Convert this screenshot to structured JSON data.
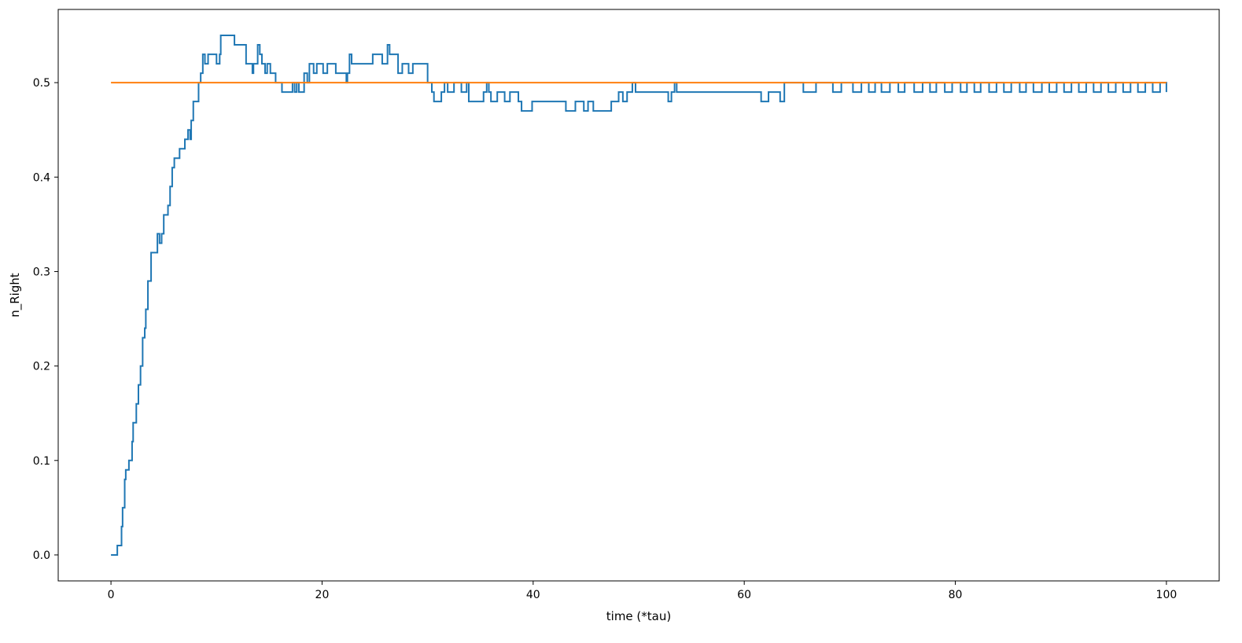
{
  "chart_data": {
    "type": "line",
    "title": "",
    "xlabel": "time (*tau)",
    "ylabel": "n_Right",
    "xlim": [
      -5,
      105
    ],
    "ylim": [
      -0.0275,
      0.5775
    ],
    "xticks": [
      0,
      20,
      40,
      60,
      80,
      100
    ],
    "xtick_labels": [
      "0",
      "20",
      "40",
      "60",
      "80",
      "100"
    ],
    "yticks": [
      0.0,
      0.1,
      0.2,
      0.3,
      0.4,
      0.5
    ],
    "ytick_labels": [
      "0.0",
      "0.1",
      "0.2",
      "0.3",
      "0.4",
      "0.5"
    ],
    "grid": false,
    "series": [
      {
        "color": "#1f77b4",
        "step": true,
        "points": [
          [
            0,
            0.0
          ],
          [
            0.6,
            0.0
          ],
          [
            0.6,
            0.01
          ],
          [
            1.0,
            0.01
          ],
          [
            1.0,
            0.03
          ],
          [
            1.1,
            0.05
          ],
          [
            1.2,
            0.05
          ],
          [
            1.3,
            0.08
          ],
          [
            1.4,
            0.09
          ],
          [
            1.6,
            0.09
          ],
          [
            1.7,
            0.1
          ],
          [
            2.0,
            0.1
          ],
          [
            2.0,
            0.12
          ],
          [
            2.1,
            0.14
          ],
          [
            2.3,
            0.14
          ],
          [
            2.4,
            0.16
          ],
          [
            2.6,
            0.18
          ],
          [
            2.8,
            0.2
          ],
          [
            3.0,
            0.23
          ],
          [
            3.2,
            0.24
          ],
          [
            3.3,
            0.26
          ],
          [
            3.5,
            0.29
          ],
          [
            3.6,
            0.29
          ],
          [
            3.8,
            0.32
          ],
          [
            4.3,
            0.32
          ],
          [
            4.4,
            0.34
          ],
          [
            4.6,
            0.33
          ],
          [
            4.8,
            0.34
          ],
          [
            5.0,
            0.36
          ],
          [
            5.4,
            0.37
          ],
          [
            5.6,
            0.39
          ],
          [
            5.8,
            0.41
          ],
          [
            6.0,
            0.42
          ],
          [
            6.4,
            0.42
          ],
          [
            6.5,
            0.43
          ],
          [
            6.9,
            0.43
          ],
          [
            7.0,
            0.44
          ],
          [
            7.3,
            0.45
          ],
          [
            7.5,
            0.44
          ],
          [
            7.6,
            0.46
          ],
          [
            7.8,
            0.48
          ],
          [
            8.2,
            0.48
          ],
          [
            8.3,
            0.5
          ],
          [
            8.5,
            0.51
          ],
          [
            8.7,
            0.53
          ],
          [
            8.9,
            0.52
          ],
          [
            9.2,
            0.53
          ],
          [
            9.8,
            0.53
          ],
          [
            10.0,
            0.52
          ],
          [
            10.3,
            0.53
          ],
          [
            10.4,
            0.55
          ],
          [
            11.6,
            0.55
          ],
          [
            11.7,
            0.54
          ],
          [
            12.6,
            0.54
          ],
          [
            12.8,
            0.52
          ],
          [
            13.4,
            0.51
          ],
          [
            13.5,
            0.52
          ],
          [
            13.9,
            0.54
          ],
          [
            14.1,
            0.53
          ],
          [
            14.3,
            0.52
          ],
          [
            14.6,
            0.51
          ],
          [
            14.8,
            0.52
          ],
          [
            15.1,
            0.51
          ],
          [
            15.6,
            0.5
          ],
          [
            16.1,
            0.5
          ],
          [
            16.2,
            0.49
          ],
          [
            17.0,
            0.49
          ],
          [
            17.2,
            0.5
          ],
          [
            17.4,
            0.49
          ],
          [
            17.6,
            0.5
          ],
          [
            17.8,
            0.49
          ],
          [
            18.3,
            0.51
          ],
          [
            18.6,
            0.5
          ],
          [
            18.8,
            0.52
          ],
          [
            19.2,
            0.51
          ],
          [
            19.5,
            0.52
          ],
          [
            20.1,
            0.51
          ],
          [
            20.5,
            0.52
          ],
          [
            21.3,
            0.51
          ],
          [
            22.3,
            0.5
          ],
          [
            22.4,
            0.51
          ],
          [
            22.6,
            0.53
          ],
          [
            22.8,
            0.52
          ],
          [
            24.6,
            0.52
          ],
          [
            24.8,
            0.53
          ],
          [
            25.5,
            0.53
          ],
          [
            25.7,
            0.52
          ],
          [
            26.2,
            0.54
          ],
          [
            26.4,
            0.53
          ],
          [
            27.2,
            0.51
          ],
          [
            27.6,
            0.52
          ],
          [
            28.2,
            0.51
          ],
          [
            28.6,
            0.52
          ],
          [
            29.5,
            0.52
          ],
          [
            30.0,
            0.5
          ],
          [
            30.4,
            0.49
          ],
          [
            30.6,
            0.48
          ],
          [
            31.3,
            0.49
          ],
          [
            31.6,
            0.5
          ],
          [
            31.9,
            0.49
          ],
          [
            32.5,
            0.5
          ],
          [
            33.2,
            0.49
          ],
          [
            33.7,
            0.5
          ],
          [
            33.9,
            0.48
          ],
          [
            35.3,
            0.49
          ],
          [
            35.6,
            0.5
          ],
          [
            35.8,
            0.49
          ],
          [
            36.0,
            0.48
          ],
          [
            36.6,
            0.49
          ],
          [
            37.3,
            0.48
          ],
          [
            37.8,
            0.49
          ],
          [
            38.6,
            0.48
          ],
          [
            38.9,
            0.47
          ],
          [
            39.9,
            0.48
          ],
          [
            43.0,
            0.48
          ],
          [
            43.1,
            0.47
          ],
          [
            44.0,
            0.48
          ],
          [
            44.8,
            0.47
          ],
          [
            45.2,
            0.48
          ],
          [
            45.7,
            0.47
          ],
          [
            47.4,
            0.48
          ],
          [
            48.1,
            0.49
          ],
          [
            48.5,
            0.48
          ],
          [
            48.9,
            0.49
          ],
          [
            49.4,
            0.5
          ],
          [
            49.7,
            0.49
          ],
          [
            52.8,
            0.48
          ],
          [
            53.1,
            0.49
          ],
          [
            53.4,
            0.5
          ],
          [
            53.6,
            0.49
          ],
          [
            61.5,
            0.49
          ],
          [
            61.6,
            0.48
          ],
          [
            62.3,
            0.49
          ],
          [
            63.2,
            0.49
          ],
          [
            63.4,
            0.48
          ],
          [
            63.8,
            0.5
          ],
          [
            64.1,
            0.5
          ],
          [
            65.5,
            0.5
          ],
          [
            65.6,
            0.49
          ],
          [
            66.8,
            0.5
          ],
          [
            68.4,
            0.49
          ],
          [
            69.2,
            0.5
          ],
          [
            70.3,
            0.49
          ],
          [
            71.1,
            0.5
          ],
          [
            71.8,
            0.49
          ],
          [
            72.4,
            0.5
          ],
          [
            73.0,
            0.49
          ],
          [
            73.8,
            0.5
          ],
          [
            74.6,
            0.49
          ],
          [
            75.2,
            0.5
          ],
          [
            76.1,
            0.49
          ],
          [
            76.9,
            0.5
          ],
          [
            77.6,
            0.49
          ],
          [
            78.2,
            0.5
          ],
          [
            79.0,
            0.49
          ],
          [
            79.7,
            0.5
          ],
          [
            80.5,
            0.49
          ],
          [
            81.1,
            0.5
          ],
          [
            81.8,
            0.49
          ],
          [
            82.4,
            0.5
          ],
          [
            83.2,
            0.49
          ],
          [
            83.9,
            0.5
          ],
          [
            84.6,
            0.49
          ],
          [
            85.3,
            0.5
          ],
          [
            86.1,
            0.49
          ],
          [
            86.7,
            0.5
          ],
          [
            87.4,
            0.49
          ],
          [
            88.2,
            0.5
          ],
          [
            88.9,
            0.49
          ],
          [
            89.6,
            0.5
          ],
          [
            90.3,
            0.49
          ],
          [
            91.0,
            0.5
          ],
          [
            91.7,
            0.49
          ],
          [
            92.4,
            0.5
          ],
          [
            93.1,
            0.49
          ],
          [
            93.8,
            0.5
          ],
          [
            94.5,
            0.49
          ],
          [
            95.2,
            0.5
          ],
          [
            95.9,
            0.49
          ],
          [
            96.6,
            0.5
          ],
          [
            97.3,
            0.49
          ],
          [
            98.0,
            0.5
          ],
          [
            98.7,
            0.49
          ],
          [
            99.4,
            0.5
          ],
          [
            100.0,
            0.49
          ]
        ]
      },
      {
        "color": "#ff7f0e",
        "step": false,
        "points": [
          [
            0,
            0.5
          ],
          [
            100,
            0.5
          ]
        ]
      }
    ]
  }
}
